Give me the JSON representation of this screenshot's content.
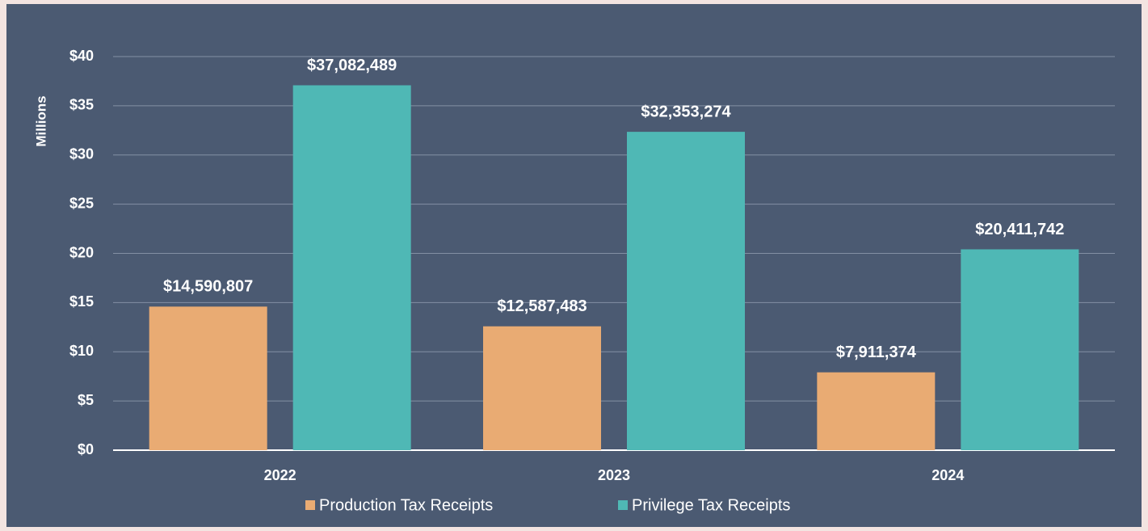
{
  "chart_data": {
    "type": "bar",
    "y_axis_label": "Millions",
    "categories": [
      "2022",
      "2023",
      "2024"
    ],
    "series": [
      {
        "name": "Production Tax Receipts",
        "color": "#e9ab73",
        "values": [
          14.590807,
          12.587483,
          7.911374
        ],
        "value_labels": [
          "$14,590,807",
          "$12,587,483",
          "$7,911,374"
        ]
      },
      {
        "name": "Privilege Tax Receipts",
        "color": "#4fb8b5",
        "values": [
          37.082489,
          32.353274,
          20.411742
        ],
        "value_labels": [
          "$37,082,489",
          "$32,353,274",
          "$20,411,742"
        ]
      }
    ],
    "ylim": [
      0,
      40
    ],
    "yticks": [
      {
        "value": 0,
        "label": "$0"
      },
      {
        "value": 5,
        "label": "$5"
      },
      {
        "value": 10,
        "label": "$10"
      },
      {
        "value": 15,
        "label": "$15"
      },
      {
        "value": 20,
        "label": "$20"
      },
      {
        "value": 25,
        "label": "$25"
      },
      {
        "value": 30,
        "label": "$30"
      },
      {
        "value": 35,
        "label": "$35"
      },
      {
        "value": 40,
        "label": "$40"
      }
    ],
    "grid": true,
    "legend": "bottom"
  }
}
